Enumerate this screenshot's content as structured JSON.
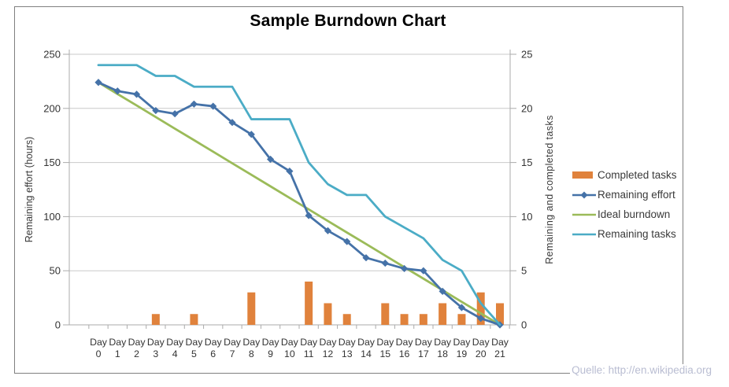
{
  "title": "Sample Burndown Chart",
  "watermark": "Quelle: http://en.wikipedia.org",
  "axes": {
    "left": {
      "title": "Remaining effort (hours)",
      "ticks": [
        250,
        200,
        150,
        100,
        50,
        0
      ]
    },
    "right": {
      "title": "Remaining and  completed tasks",
      "ticks": [
        25,
        20,
        15,
        10,
        5,
        0
      ]
    },
    "x": {
      "prefix": "Day",
      "days": [
        "0",
        "1",
        "2",
        "3",
        "4",
        "5",
        "6",
        "7",
        "8",
        "9",
        "10",
        "11",
        "12",
        "13",
        "14",
        "15",
        "16",
        "17",
        "18",
        "19",
        "20",
        "21"
      ]
    }
  },
  "legend": {
    "items": [
      {
        "label": "Completed tasks",
        "swatch": "bar",
        "color": "#E0823C"
      },
      {
        "label": "Remaining effort",
        "swatch": "line-diamond",
        "color": "#4572A8"
      },
      {
        "label": "Ideal burndown",
        "swatch": "line",
        "color": "#9BBB59"
      },
      {
        "label": "Remaining tasks",
        "swatch": "line",
        "color": "#4BACC6"
      }
    ]
  },
  "colors": {
    "grid": "#C9C9C9",
    "axis": "#ABABAB",
    "text": "#333333",
    "frame": "#808080",
    "watermark": "#B9BDD2"
  },
  "chart_data": {
    "type": "combo",
    "title": "Sample Burndown Chart",
    "x_label_prefix": "Day",
    "x": [
      0,
      1,
      2,
      3,
      4,
      5,
      6,
      7,
      8,
      9,
      10,
      11,
      12,
      13,
      14,
      15,
      16,
      17,
      18,
      19,
      20,
      21
    ],
    "left_ylim": [
      0,
      250
    ],
    "right_ylim": [
      0,
      25
    ],
    "left_axis_label": "Remaining effort (hours)",
    "right_axis_label": "Remaining and completed tasks",
    "grid": true,
    "legend_position": "right",
    "series": [
      {
        "name": "Completed tasks",
        "type": "bar",
        "axis": "right",
        "color": "#E0823C",
        "values": [
          0,
          0,
          0,
          1,
          0,
          1,
          0,
          0,
          3,
          0,
          0,
          4,
          2,
          1,
          0,
          2,
          1,
          1,
          2,
          1,
          3,
          2
        ]
      },
      {
        "name": "Remaining effort",
        "type": "line",
        "marker": "diamond",
        "axis": "left",
        "color": "#4572A8",
        "values": [
          224,
          216,
          213,
          198,
          195,
          204,
          202,
          187,
          176,
          153,
          142,
          101,
          87,
          77,
          62,
          57,
          52,
          50,
          31,
          16,
          6,
          0
        ]
      },
      {
        "name": "Ideal burndown",
        "type": "line",
        "axis": "left",
        "color": "#9BBB59",
        "values": [
          224,
          213.3,
          202.7,
          192,
          181.3,
          170.7,
          160,
          149.3,
          138.7,
          128,
          117.3,
          106.7,
          96,
          85.3,
          74.7,
          64,
          53.3,
          42.7,
          32,
          21.3,
          10.7,
          0
        ]
      },
      {
        "name": "Remaining tasks",
        "type": "line",
        "axis": "right",
        "color": "#4BACC6",
        "values": [
          24,
          24,
          24,
          23,
          23,
          22,
          22,
          22,
          19,
          19,
          19,
          15,
          13,
          12,
          12,
          10,
          9,
          8,
          6,
          5,
          2,
          0
        ]
      }
    ]
  }
}
